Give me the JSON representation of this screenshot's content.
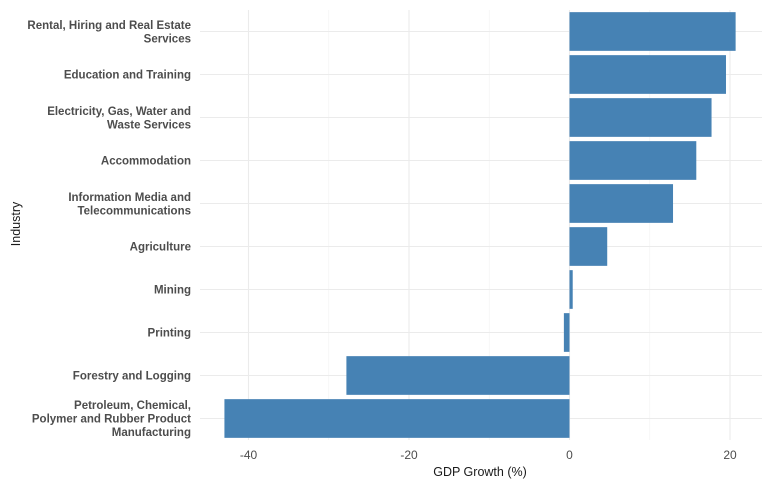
{
  "chart_data": {
    "type": "bar",
    "orientation": "horizontal",
    "xlabel": "GDP Growth (%)",
    "ylabel": "Industry",
    "xlim": [
      -45,
      24
    ],
    "x_ticks": [
      -40,
      -20,
      0,
      20
    ],
    "bar_color": "#4682b4",
    "grid": true,
    "categories": [
      "Rental, Hiring and Real Estate\nServices",
      "Education and Training",
      "Electricity, Gas, Water and\nWaste Services",
      "Accommodation",
      "Information Media and\nTelecommunications",
      "Agriculture",
      "Mining",
      "Printing",
      "Forestry and Logging",
      "Petroleum, Chemical,\nPolymer and Rubber Product\nManufacturing"
    ],
    "values": [
      20.7,
      19.5,
      17.7,
      15.8,
      12.9,
      4.7,
      0.4,
      -0.7,
      -27.8,
      -43.0
    ]
  }
}
